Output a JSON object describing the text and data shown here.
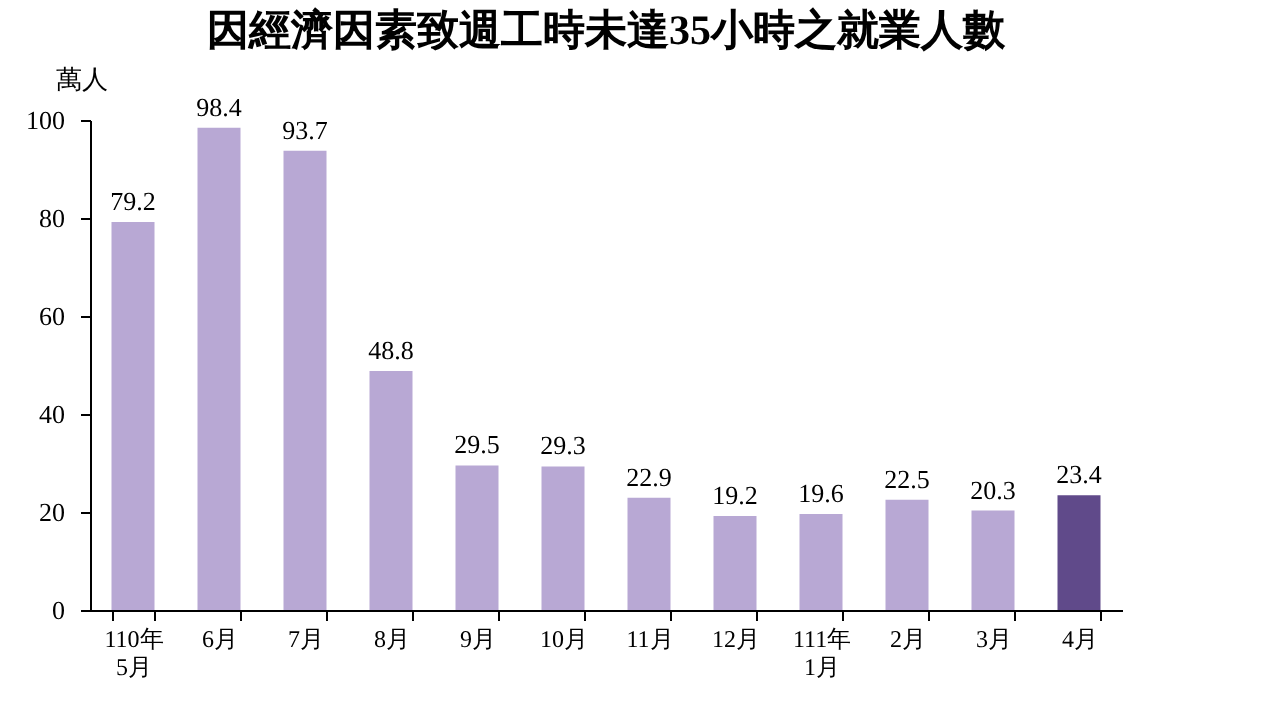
{
  "chart_data": {
    "type": "bar",
    "title": "因經濟因素致週工時未達35小時之就業人數",
    "ylabel": "萬人",
    "categories": [
      "110年\n5月",
      "6月",
      "7月",
      "8月",
      "9月",
      "10月",
      "11月",
      "12月",
      "111年\n1月",
      "2月",
      "3月",
      "4月"
    ],
    "values": [
      79.2,
      98.4,
      93.7,
      48.8,
      29.5,
      29.3,
      22.9,
      19.2,
      19.6,
      22.5,
      20.3,
      23.4
    ],
    "colors": [
      "#b8a8d4",
      "#b8a8d4",
      "#b8a8d4",
      "#b8a8d4",
      "#b8a8d4",
      "#b8a8d4",
      "#b8a8d4",
      "#b8a8d4",
      "#b8a8d4",
      "#b8a8d4",
      "#b8a8d4",
      "#604a8a"
    ],
    "ylim": [
      0,
      100
    ],
    "yticks": [
      0,
      20,
      40,
      60,
      80,
      100
    ],
    "data_labels": true,
    "grid": false,
    "legend": false
  }
}
